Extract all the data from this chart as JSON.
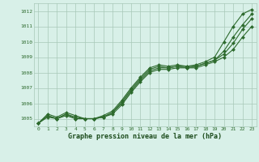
{
  "x": [
    0,
    1,
    2,
    3,
    4,
    5,
    6,
    7,
    8,
    9,
    10,
    11,
    12,
    13,
    14,
    15,
    16,
    17,
    18,
    19,
    20,
    21,
    22,
    23
  ],
  "series": [
    [
      1004.7,
      1005.3,
      1005.1,
      1005.4,
      1005.2,
      1005.0,
      1005.0,
      1005.2,
      1005.5,
      1006.2,
      1007.0,
      1007.7,
      1008.3,
      1008.5,
      1008.4,
      1008.5,
      1008.4,
      1008.5,
      1008.7,
      1009.0,
      1010.0,
      1011.0,
      1011.8,
      1012.1
    ],
    [
      1004.7,
      1005.2,
      1005.0,
      1005.3,
      1005.1,
      1005.0,
      1005.0,
      1005.1,
      1005.4,
      1006.1,
      1006.9,
      1007.6,
      1008.2,
      1008.4,
      1008.3,
      1008.4,
      1008.4,
      1008.4,
      1008.6,
      1008.8,
      1009.4,
      1010.3,
      1011.1,
      1011.8
    ],
    [
      1004.7,
      1005.2,
      1005.0,
      1005.3,
      1005.0,
      1005.0,
      1005.0,
      1005.1,
      1005.4,
      1006.0,
      1006.8,
      1007.5,
      1008.1,
      1008.3,
      1008.3,
      1008.4,
      1008.3,
      1008.4,
      1008.6,
      1008.8,
      1009.2,
      1009.9,
      1010.8,
      1011.5
    ],
    [
      1004.7,
      1005.1,
      1005.0,
      1005.2,
      1005.0,
      1005.0,
      1005.0,
      1005.1,
      1005.3,
      1005.9,
      1006.7,
      1007.4,
      1008.0,
      1008.2,
      1008.2,
      1008.3,
      1008.3,
      1008.3,
      1008.5,
      1008.7,
      1009.0,
      1009.5,
      1010.3,
      1011.0
    ]
  ],
  "line_color": "#2d6a2d",
  "marker_color": "#2d6a2d",
  "bg_color": "#d8f0e8",
  "grid_color": "#a8c8b8",
  "xlabel": "Graphe pression niveau de la mer (hPa)",
  "xlabel_color": "#1a4a1a",
  "text_color": "#2d6a2d",
  "ylim": [
    1004.5,
    1012.5
  ],
  "yticks": [
    1005,
    1006,
    1007,
    1008,
    1009,
    1010,
    1011,
    1012
  ],
  "xticks": [
    0,
    1,
    2,
    3,
    4,
    5,
    6,
    7,
    8,
    9,
    10,
    11,
    12,
    13,
    14,
    15,
    16,
    17,
    18,
    19,
    20,
    21,
    22,
    23
  ],
  "marker": "D",
  "markersize": 2.0,
  "linewidth": 0.8,
  "figsize": [
    3.2,
    2.0
  ],
  "dpi": 100
}
